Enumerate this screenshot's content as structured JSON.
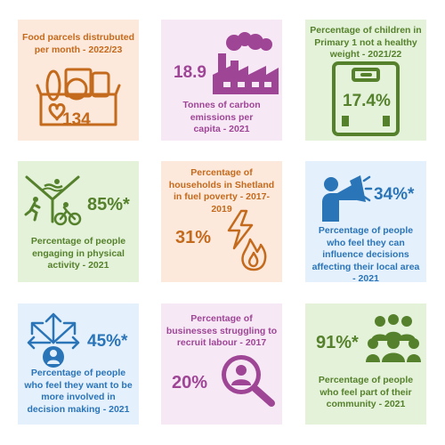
{
  "colors": {
    "orange_bg": "#fde8dc",
    "orange": "#c46a1c",
    "purple_bg": "#f7e8f6",
    "purple": "#9e4595",
    "green_bg": "#e3f2d9",
    "green": "#56812c",
    "blue_bg": "#e4f0fb",
    "blue": "#2a74b8"
  },
  "cards": [
    {
      "label": "Food parcels distrubuted per month - 2022/23",
      "value": "134",
      "icon": "food-box-icon"
    },
    {
      "label": "Tonnes of carbon emissions per capita - 2021",
      "value": "18.9",
      "icon": "factory-icon"
    },
    {
      "label": "Percentage of children in Primary 1 not a healthy weight - 2021/22",
      "value": "17.4%",
      "icon": "scale-icon"
    },
    {
      "label": "Percentage of people engaging in physical activity - 2021",
      "value": "85%*",
      "icon": "triathlon-icon"
    },
    {
      "label": "Percentage of households in Shetland in fuel poverty - 2017-2019",
      "value": "31%",
      "icon": "lightning-fire-icon"
    },
    {
      "label": "Percentage of people who feel they can influence decisions affecting their local area - 2021",
      "value": "34%*",
      "icon": "megaphone-icon"
    },
    {
      "label": "Percentage of people who feel they want to be more involved in decision making - 2021",
      "value": "45%*",
      "icon": "decision-arrows-icon"
    },
    {
      "label": "Percentage of businesses struggling to recruit labour - 2017",
      "value": "20%",
      "icon": "magnifier-person-icon"
    },
    {
      "label": "Percentage of people who feel part of their community - 2021",
      "value": "91%*",
      "icon": "community-icon"
    }
  ]
}
